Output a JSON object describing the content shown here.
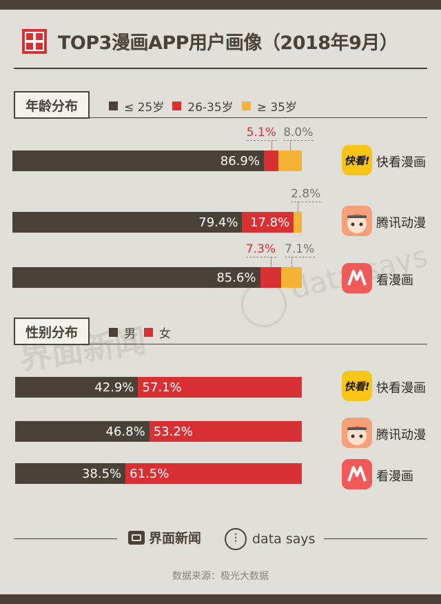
{
  "header": {
    "title": "TOP3漫画APP用户画像（2018年9月）"
  },
  "colors": {
    "dark": "#4a4138",
    "red": "#d93034",
    "yellow": "#f5b335",
    "background": "#dfded9"
  },
  "age_section": {
    "label": "年龄分布",
    "legend": [
      "≤ 25岁",
      "26-35岁",
      "≥ 35岁"
    ]
  },
  "gender_section": {
    "label": "性别分布",
    "legend": [
      "男",
      "女"
    ]
  },
  "apps": [
    {
      "name": "快看漫画",
      "icon": "kuaikan-icon"
    },
    {
      "name": "腾讯动漫",
      "icon": "tencent-comic-icon"
    },
    {
      "name": "看漫画",
      "icon": "kanmanhua-icon"
    }
  ],
  "chart_data": [
    {
      "type": "bar",
      "title": "年龄分布",
      "stacked": true,
      "categories": [
        "快看漫画",
        "腾讯动漫",
        "看漫画"
      ],
      "series": [
        {
          "name": "≤ 25岁",
          "values": [
            86.9,
            79.4,
            85.6
          ],
          "labels": [
            "86.9%",
            "79.4%",
            "85.6%"
          ]
        },
        {
          "name": "26-35岁",
          "values": [
            5.1,
            17.8,
            7.3
          ],
          "labels": [
            "5.1%",
            "17.8%",
            "7.3%"
          ]
        },
        {
          "name": "≥ 35岁",
          "values": [
            8.0,
            2.8,
            7.1
          ],
          "labels": [
            "8.0%",
            "2.8%",
            "7.1%"
          ]
        }
      ]
    },
    {
      "type": "bar",
      "title": "性别分布",
      "stacked": true,
      "categories": [
        "快看漫画",
        "腾讯动漫",
        "看漫画"
      ],
      "series": [
        {
          "name": "男",
          "values": [
            42.9,
            46.8,
            38.5
          ],
          "labels": [
            "42.9%",
            "46.8%",
            "38.5%"
          ]
        },
        {
          "name": "女",
          "values": [
            57.1,
            53.2,
            61.5
          ],
          "labels": [
            "57.1%",
            "53.2%",
            "61.5%"
          ]
        }
      ]
    }
  ],
  "watermark": {
    "brand_cn": "界面新闻",
    "brand_en": "data says"
  },
  "footer": {
    "brand_cn": "界面新闻",
    "brand_en": "data says",
    "source": "数据来源：极光大数据"
  }
}
